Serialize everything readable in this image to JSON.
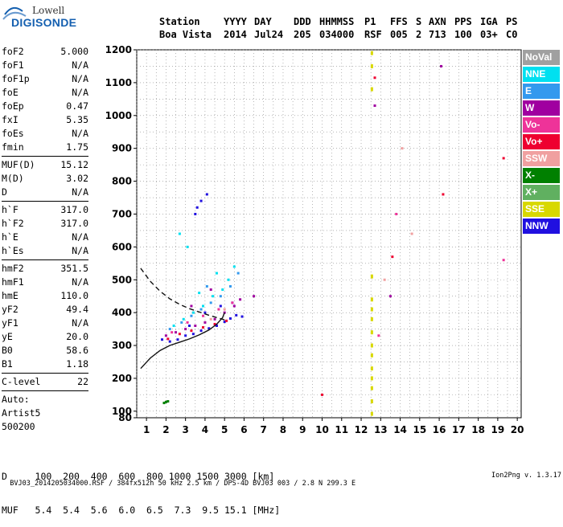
{
  "logo": {
    "line1": "Lowell",
    "line2": "DIGISONDE"
  },
  "header": {
    "columns": [
      "Station",
      "YYYY",
      "DAY",
      "DDD",
      "HHMMSS",
      "P1",
      "FFS",
      "S",
      "AXN",
      "PPS",
      "IGA",
      "PS"
    ],
    "values": [
      "Boa Vista",
      "2014",
      "Jul24",
      "205",
      "034000",
      "RSF",
      "005",
      "2",
      "713",
      "100",
      "03+",
      "C0"
    ]
  },
  "params": {
    "group1": [
      {
        "name": "foF2",
        "value": "5.000"
      },
      {
        "name": "foF1",
        "value": "N/A"
      },
      {
        "name": "foF1p",
        "value": "N/A"
      },
      {
        "name": "foE",
        "value": "N/A"
      },
      {
        "name": "foEp",
        "value": "0.47"
      },
      {
        "name": "fxI",
        "value": "5.35"
      },
      {
        "name": "foEs",
        "value": "N/A"
      },
      {
        "name": "fmin",
        "value": "1.75"
      }
    ],
    "group2": [
      {
        "name": "MUF(D)",
        "value": "15.12"
      },
      {
        "name": "M(D)",
        "value": "3.02"
      },
      {
        "name": "D",
        "value": "N/A"
      }
    ],
    "group3": [
      {
        "name": "h`F",
        "value": "317.0"
      },
      {
        "name": "h`F2",
        "value": "317.0"
      },
      {
        "name": "h`E",
        "value": "N/A"
      },
      {
        "name": "h`Es",
        "value": "N/A"
      }
    ],
    "group4": [
      {
        "name": "hmF2",
        "value": "351.5"
      },
      {
        "name": "hmF1",
        "value": "N/A"
      },
      {
        "name": "hmE",
        "value": "110.0"
      },
      {
        "name": "yF2",
        "value": "49.4"
      },
      {
        "name": "yF1",
        "value": "N/A"
      },
      {
        "name": "yE",
        "value": "20.0"
      },
      {
        "name": "B0",
        "value": "58.6"
      },
      {
        "name": "B1",
        "value": "1.18"
      }
    ],
    "clevel": {
      "name": "C-level",
      "value": "22"
    },
    "auto_lines": [
      "Auto:",
      "Artist5",
      "500200"
    ]
  },
  "legend": [
    {
      "label": "NoVal",
      "color": "#a0a0a0"
    },
    {
      "label": "NNE",
      "color": "#00e0f0"
    },
    {
      "label": "E",
      "color": "#3399ee"
    },
    {
      "label": "W",
      "color": "#a000a0"
    },
    {
      "label": "Vo-",
      "color": "#ee3399"
    },
    {
      "label": "Vo+",
      "color": "#ee0030"
    },
    {
      "label": "SSW",
      "color": "#f0a0a0"
    },
    {
      "label": "X-",
      "color": "#008000"
    },
    {
      "label": "X+",
      "color": "#60b060"
    },
    {
      "label": "SSE",
      "color": "#d8d800"
    },
    {
      "label": "NNW",
      "color": "#2010e0"
    }
  ],
  "dmuf": {
    "d_line": "D     100  200  400  600  800 1000 1500 3000 [km]",
    "muf_line": "MUF   5.4  5.4  5.6  6.0  6.5  7.3  9.5 15.1 [MHz]"
  },
  "footer": {
    "text": "BVJ03_2014205034000.RSF / 384fx512h 50 kHz 2.5 km / DPS-4D BVJ03 003 / 2.8 N 299.3 E",
    "version": "Ion2Png v. 1.3.17"
  },
  "chart_data": {
    "type": "scatter",
    "title": "",
    "xlabel": "",
    "ylabel": "",
    "xlim": [
      0.5,
      20.2
    ],
    "ylim": [
      80,
      1200
    ],
    "xticks": [
      1,
      2,
      3,
      4,
      5,
      6,
      7,
      8,
      9,
      10,
      11,
      12,
      13,
      14,
      15,
      16,
      17,
      18,
      19,
      20
    ],
    "yticks": [
      80,
      100,
      200,
      300,
      400,
      500,
      600,
      700,
      800,
      900,
      1000,
      1100,
      1200
    ],
    "grid": true,
    "legend_position": "right",
    "series": [
      {
        "name": "NNW",
        "points": [
          [
            1.8,
            318
          ],
          [
            2.2,
            312
          ],
          [
            2.6,
            318
          ],
          [
            3.0,
            330
          ],
          [
            3.4,
            335
          ],
          [
            3.8,
            345
          ],
          [
            4.2,
            352
          ],
          [
            4.6,
            360
          ],
          [
            5.0,
            372
          ],
          [
            5.3,
            382
          ],
          [
            5.6,
            392
          ],
          [
            5.9,
            388
          ],
          [
            5.4,
            430
          ],
          [
            4.8,
            420
          ],
          [
            4.0,
            400
          ],
          [
            3.2,
            360
          ],
          [
            3.6,
            720
          ],
          [
            3.8,
            740
          ],
          [
            4.1,
            760
          ],
          [
            3.5,
            700
          ]
        ]
      },
      {
        "name": "W",
        "points": [
          [
            2.0,
            330
          ],
          [
            2.5,
            340
          ],
          [
            3.0,
            350
          ],
          [
            3.5,
            360
          ],
          [
            4.0,
            370
          ],
          [
            4.5,
            380
          ],
          [
            5.0,
            400
          ],
          [
            5.5,
            420
          ],
          [
            5.8,
            440
          ],
          [
            4.3,
            470
          ],
          [
            3.3,
            420
          ],
          [
            6.5,
            450
          ],
          [
            12.7,
            1030
          ],
          [
            13.5,
            450
          ],
          [
            16.1,
            1150
          ]
        ]
      },
      {
        "name": "NNE",
        "points": [
          [
            2.4,
            360
          ],
          [
            2.9,
            380
          ],
          [
            3.4,
            400
          ],
          [
            3.9,
            420
          ],
          [
            4.4,
            450
          ],
          [
            4.9,
            470
          ],
          [
            5.2,
            500
          ],
          [
            5.5,
            540
          ],
          [
            4.6,
            520
          ],
          [
            3.7,
            460
          ],
          [
            3.1,
            600
          ],
          [
            2.7,
            640
          ]
        ]
      },
      {
        "name": "E",
        "points": [
          [
            2.2,
            350
          ],
          [
            2.8,
            370
          ],
          [
            3.3,
            390
          ],
          [
            3.8,
            410
          ],
          [
            4.3,
            430
          ],
          [
            4.8,
            450
          ],
          [
            5.3,
            480
          ],
          [
            5.7,
            520
          ],
          [
            4.1,
            480
          ]
        ]
      },
      {
        "name": "Vo-",
        "points": [
          [
            2.3,
            340
          ],
          [
            3.1,
            370
          ],
          [
            3.9,
            390
          ],
          [
            4.7,
            410
          ],
          [
            5.4,
            430
          ],
          [
            12.9,
            330
          ],
          [
            13.8,
            700
          ],
          [
            19.3,
            560
          ]
        ]
      },
      {
        "name": "Vo+",
        "points": [
          [
            2.1,
            320
          ],
          [
            2.7,
            335
          ],
          [
            3.3,
            345
          ],
          [
            3.9,
            355
          ],
          [
            4.5,
            365
          ],
          [
            5.1,
            375
          ],
          [
            10.0,
            150
          ],
          [
            12.7,
            1115
          ],
          [
            13.6,
            570
          ],
          [
            16.2,
            760
          ],
          [
            19.3,
            870
          ]
        ]
      },
      {
        "name": "SSW",
        "points": [
          [
            4.3,
            380
          ],
          [
            5.0,
            410
          ],
          [
            13.2,
            500
          ],
          [
            14.1,
            900
          ],
          [
            14.6,
            640
          ]
        ]
      },
      {
        "name": "X-",
        "points": [
          [
            1.9,
            125
          ],
          [
            2.0,
            128
          ],
          [
            2.1,
            130
          ]
        ]
      },
      {
        "name": "SSE",
        "points": [
          [
            12.55,
            1190
          ],
          [
            12.55,
            1150
          ],
          [
            12.55,
            1080
          ],
          [
            12.55,
            510
          ],
          [
            12.55,
            440
          ],
          [
            12.55,
            410
          ],
          [
            12.55,
            380
          ],
          [
            12.55,
            340
          ],
          [
            12.55,
            300
          ],
          [
            12.55,
            270
          ],
          [
            12.55,
            230
          ],
          [
            12.55,
            200
          ],
          [
            12.55,
            170
          ],
          [
            12.55,
            130
          ],
          [
            12.55,
            92
          ]
        ]
      }
    ],
    "curves": [
      {
        "name": "solid",
        "style": "solid",
        "points": [
          [
            0.7,
            230
          ],
          [
            1.2,
            262
          ],
          [
            1.7,
            285
          ],
          [
            2.2,
            300
          ],
          [
            2.7,
            310
          ],
          [
            3.2,
            320
          ],
          [
            3.7,
            332
          ],
          [
            4.2,
            347
          ],
          [
            4.6,
            365
          ],
          [
            4.9,
            385
          ],
          [
            5.0,
            400
          ]
        ]
      },
      {
        "name": "dashed",
        "style": "dashed",
        "points": [
          [
            0.7,
            535
          ],
          [
            1.2,
            495
          ],
          [
            1.7,
            465
          ],
          [
            2.2,
            442
          ],
          [
            2.7,
            425
          ],
          [
            3.2,
            412
          ],
          [
            3.7,
            402
          ],
          [
            4.2,
            392
          ],
          [
            4.6,
            385
          ],
          [
            5.0,
            378
          ]
        ]
      }
    ]
  }
}
